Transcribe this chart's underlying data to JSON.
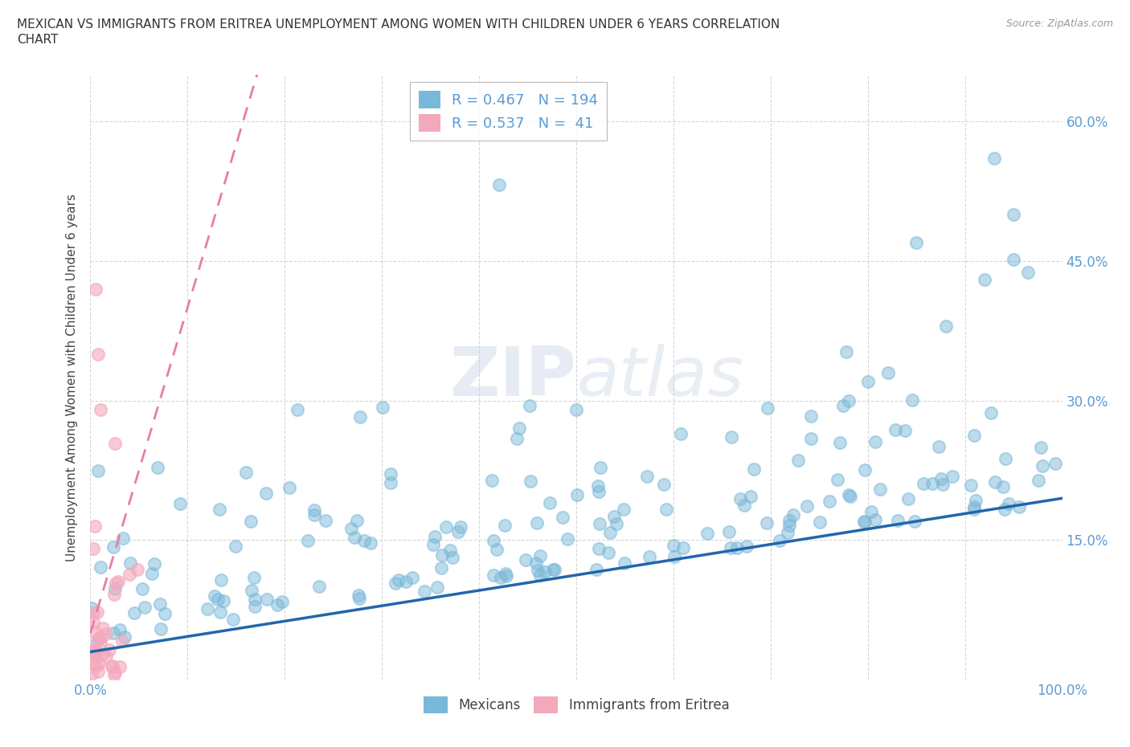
{
  "title_line1": "MEXICAN VS IMMIGRANTS FROM ERITREA UNEMPLOYMENT AMONG WOMEN WITH CHILDREN UNDER 6 YEARS CORRELATION",
  "title_line2": "CHART",
  "source": "Source: ZipAtlas.com",
  "ylabel": "Unemployment Among Women with Children Under 6 years",
  "xlim": [
    0.0,
    1.0
  ],
  "ylim": [
    0.0,
    0.65
  ],
  "x_ticks": [
    0.0,
    0.1,
    0.2,
    0.3,
    0.4,
    0.5,
    0.6,
    0.7,
    0.8,
    0.9,
    1.0
  ],
  "x_tick_labels": [
    "0.0%",
    "",
    "",
    "",
    "",
    "",
    "",
    "",
    "",
    "",
    "100.0%"
  ],
  "y_ticks": [
    0.0,
    0.15,
    0.3,
    0.45,
    0.6
  ],
  "y_tick_labels": [
    "",
    "15.0%",
    "30.0%",
    "45.0%",
    "60.0%"
  ],
  "mexicans_color": "#7ab8d9",
  "eritrea_color": "#f4a8bc",
  "trendline_blue": "#2166ac",
  "trendline_pink": "#e87ea0",
  "R_mexicans": 0.467,
  "N_mexicans": 194,
  "R_eritrea": 0.537,
  "N_eritrea": 41,
  "watermark_zip": "ZIP",
  "watermark_atlas": "atlas",
  "legend_labels": [
    "Mexicans",
    "Immigrants from Eritrea"
  ],
  "background_color": "#ffffff",
  "grid_color": "#cccccc",
  "tick_label_color": "#5b9bd5"
}
